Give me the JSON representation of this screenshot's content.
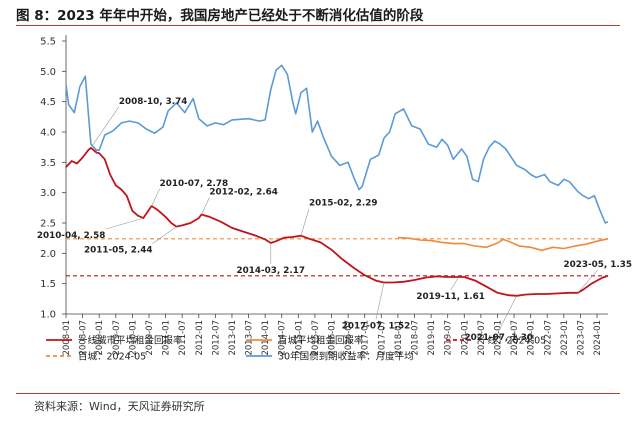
{
  "figure_title": "图 8：2023 年年中开始，我国房地产已经处于不断消化估值的阶段",
  "source_note": "资料来源：Wind，天风证券研究所",
  "colors": {
    "tier1_rent_yield": "#c0141c",
    "tier100_rent_yield": "#f08a3a",
    "cgb_30y": "#5b9bd5",
    "title_rule": "#b04040"
  },
  "chart_data": {
    "type": "line",
    "title": "",
    "xlabel": "",
    "ylabel": "",
    "ylim": [
      1.0,
      5.5
    ],
    "yticks": [
      1.0,
      1.5,
      2.0,
      2.5,
      3.0,
      3.5,
      4.0,
      4.5,
      5.0,
      5.5
    ],
    "ytick_labels": [
      "1.0",
      "1.5",
      "2.0",
      "2.5",
      "3.0",
      "3.5",
      "4.0",
      "4.5",
      "5.0",
      "5.5"
    ],
    "xlim": [
      2008.0,
      2024.33
    ],
    "xtick_labels": [
      "2008-01",
      "2008-07",
      "2009-01",
      "2009-07",
      "2010-01",
      "2010-07",
      "2011-01",
      "2011-07",
      "2012-01",
      "2012-07",
      "2013-01",
      "2013-07",
      "2014-01",
      "2014-07",
      "2015-01",
      "2015-07",
      "2016-01",
      "2016-07",
      "2017-01",
      "2017-07",
      "2018-01",
      "2018-07",
      "2019-01",
      "2019-07",
      "2020-01",
      "2020-07",
      "2021-01",
      "2021-07",
      "2022-01",
      "2022-07",
      "2023-01",
      "2023-07",
      "2024-01"
    ],
    "grid": false,
    "legend_position": "bottom",
    "series": [
      {
        "name": "一线城市平均租金回报率",
        "color_key": "tier1_rent_yield",
        "style": "solid",
        "points": [
          [
            2008.0,
            3.42
          ],
          [
            2008.17,
            3.52
          ],
          [
            2008.33,
            3.48
          ],
          [
            2008.5,
            3.58
          ],
          [
            2008.67,
            3.7
          ],
          [
            2008.75,
            3.74
          ],
          [
            2008.92,
            3.66
          ],
          [
            2009.0,
            3.65
          ],
          [
            2009.17,
            3.55
          ],
          [
            2009.33,
            3.3
          ],
          [
            2009.5,
            3.12
          ],
          [
            2009.67,
            3.05
          ],
          [
            2009.83,
            2.95
          ],
          [
            2010.0,
            2.7
          ],
          [
            2010.17,
            2.62
          ],
          [
            2010.33,
            2.58
          ],
          [
            2010.5,
            2.72
          ],
          [
            2010.58,
            2.78
          ],
          [
            2010.75,
            2.72
          ],
          [
            2011.0,
            2.6
          ],
          [
            2011.17,
            2.5
          ],
          [
            2011.33,
            2.44
          ],
          [
            2011.5,
            2.46
          ],
          [
            2011.75,
            2.5
          ],
          [
            2012.0,
            2.58
          ],
          [
            2012.08,
            2.64
          ],
          [
            2012.33,
            2.6
          ],
          [
            2012.67,
            2.52
          ],
          [
            2013.0,
            2.42
          ],
          [
            2013.33,
            2.36
          ],
          [
            2013.67,
            2.3
          ],
          [
            2014.0,
            2.23
          ],
          [
            2014.17,
            2.17
          ],
          [
            2014.33,
            2.2
          ],
          [
            2014.58,
            2.26
          ],
          [
            2014.83,
            2.27
          ],
          [
            2015.08,
            2.29
          ],
          [
            2015.33,
            2.24
          ],
          [
            2015.67,
            2.18
          ],
          [
            2016.0,
            2.06
          ],
          [
            2016.33,
            1.9
          ],
          [
            2016.67,
            1.76
          ],
          [
            2017.0,
            1.64
          ],
          [
            2017.33,
            1.55
          ],
          [
            2017.58,
            1.52
          ],
          [
            2017.83,
            1.52
          ],
          [
            2018.17,
            1.53
          ],
          [
            2018.5,
            1.56
          ],
          [
            2018.83,
            1.6
          ],
          [
            2019.17,
            1.62
          ],
          [
            2019.5,
            1.61
          ],
          [
            2019.83,
            1.61
          ],
          [
            2020.0,
            1.61
          ],
          [
            2020.33,
            1.55
          ],
          [
            2020.67,
            1.45
          ],
          [
            2021.0,
            1.35
          ],
          [
            2021.33,
            1.31
          ],
          [
            2021.58,
            1.3
          ],
          [
            2021.83,
            1.32
          ],
          [
            2022.17,
            1.33
          ],
          [
            2022.5,
            1.33
          ],
          [
            2022.83,
            1.34
          ],
          [
            2023.17,
            1.35
          ],
          [
            2023.42,
            1.35
          ],
          [
            2023.58,
            1.4
          ],
          [
            2023.83,
            1.5
          ],
          [
            2024.0,
            1.55
          ],
          [
            2024.17,
            1.6
          ],
          [
            2024.33,
            1.63
          ]
        ]
      },
      {
        "name": "百城平均租金回报率",
        "color_key": "tier100_rent_yield",
        "style": "solid",
        "points": [
          [
            2018.0,
            2.26
          ],
          [
            2018.33,
            2.25
          ],
          [
            2018.67,
            2.22
          ],
          [
            2019.0,
            2.21
          ],
          [
            2019.33,
            2.18
          ],
          [
            2019.67,
            2.16
          ],
          [
            2020.0,
            2.16
          ],
          [
            2020.33,
            2.12
          ],
          [
            2020.67,
            2.1
          ],
          [
            2021.0,
            2.17
          ],
          [
            2021.17,
            2.23
          ],
          [
            2021.33,
            2.2
          ],
          [
            2021.67,
            2.12
          ],
          [
            2022.0,
            2.1
          ],
          [
            2022.33,
            2.05
          ],
          [
            2022.67,
            2.1
          ],
          [
            2023.0,
            2.08
          ],
          [
            2023.33,
            2.12
          ],
          [
            2023.67,
            2.15
          ],
          [
            2024.0,
            2.2
          ],
          [
            2024.33,
            2.24
          ]
        ]
      },
      {
        "name": "30年国债到期收益率：月度平均",
        "color_key": "cgb_30y",
        "style": "solid",
        "points": [
          [
            2008.0,
            4.78
          ],
          [
            2008.08,
            4.45
          ],
          [
            2008.25,
            4.32
          ],
          [
            2008.42,
            4.75
          ],
          [
            2008.58,
            4.92
          ],
          [
            2008.75,
            3.8
          ],
          [
            2008.92,
            3.7
          ],
          [
            2009.0,
            3.7
          ],
          [
            2009.17,
            3.95
          ],
          [
            2009.42,
            4.02
          ],
          [
            2009.67,
            4.15
          ],
          [
            2009.92,
            4.18
          ],
          [
            2010.17,
            4.15
          ],
          [
            2010.42,
            4.05
          ],
          [
            2010.67,
            3.98
          ],
          [
            2010.92,
            4.08
          ],
          [
            2011.08,
            4.35
          ],
          [
            2011.33,
            4.48
          ],
          [
            2011.58,
            4.32
          ],
          [
            2011.83,
            4.55
          ],
          [
            2012.0,
            4.22
          ],
          [
            2012.25,
            4.1
          ],
          [
            2012.5,
            4.15
          ],
          [
            2012.75,
            4.12
          ],
          [
            2013.0,
            4.2
          ],
          [
            2013.5,
            4.22
          ],
          [
            2013.83,
            4.18
          ],
          [
            2014.0,
            4.2
          ],
          [
            2014.17,
            4.7
          ],
          [
            2014.33,
            5.02
          ],
          [
            2014.5,
            5.1
          ],
          [
            2014.67,
            4.95
          ],
          [
            2014.83,
            4.5
          ],
          [
            2014.92,
            4.3
          ],
          [
            2015.08,
            4.65
          ],
          [
            2015.25,
            4.72
          ],
          [
            2015.42,
            4.0
          ],
          [
            2015.58,
            4.18
          ],
          [
            2015.75,
            3.92
          ],
          [
            2016.0,
            3.6
          ],
          [
            2016.25,
            3.45
          ],
          [
            2016.5,
            3.5
          ],
          [
            2016.67,
            3.25
          ],
          [
            2016.83,
            3.05
          ],
          [
            2016.92,
            3.1
          ],
          [
            2017.17,
            3.55
          ],
          [
            2017.42,
            3.62
          ],
          [
            2017.58,
            3.9
          ],
          [
            2017.75,
            4.0
          ],
          [
            2017.92,
            4.3
          ],
          [
            2018.17,
            4.38
          ],
          [
            2018.42,
            4.1
          ],
          [
            2018.67,
            4.05
          ],
          [
            2018.92,
            3.8
          ],
          [
            2019.17,
            3.75
          ],
          [
            2019.33,
            3.88
          ],
          [
            2019.5,
            3.78
          ],
          [
            2019.67,
            3.55
          ],
          [
            2019.92,
            3.72
          ],
          [
            2020.08,
            3.6
          ],
          [
            2020.25,
            3.22
          ],
          [
            2020.42,
            3.18
          ],
          [
            2020.58,
            3.55
          ],
          [
            2020.75,
            3.75
          ],
          [
            2020.92,
            3.85
          ],
          [
            2021.08,
            3.8
          ],
          [
            2021.25,
            3.72
          ],
          [
            2021.42,
            3.58
          ],
          [
            2021.58,
            3.45
          ],
          [
            2021.83,
            3.38
          ],
          [
            2022.0,
            3.3
          ],
          [
            2022.17,
            3.25
          ],
          [
            2022.42,
            3.3
          ],
          [
            2022.58,
            3.18
          ],
          [
            2022.83,
            3.12
          ],
          [
            2023.0,
            3.22
          ],
          [
            2023.17,
            3.18
          ],
          [
            2023.42,
            3.02
          ],
          [
            2023.58,
            2.95
          ],
          [
            2023.75,
            2.9
          ],
          [
            2023.92,
            2.95
          ],
          [
            2024.08,
            2.72
          ],
          [
            2024.25,
            2.5
          ],
          [
            2024.33,
            2.52
          ]
        ]
      }
    ],
    "reference_lines": [
      {
        "name": "一线：2024-05",
        "value": 1.63,
        "color_key": "tier1_rent_yield",
        "style": "dashed"
      },
      {
        "name": "百城：2024-05",
        "value": 2.24,
        "color_key": "tier100_rent_yield",
        "style": "dashed"
      }
    ],
    "annotations": [
      {
        "text": "2008-10, 3.74",
        "x": 2008.75,
        "y": 3.74
      },
      {
        "text": "2010-07, 2.78",
        "x": 2010.58,
        "y": 2.78
      },
      {
        "text": "2010-04, 2.58",
        "x": 2010.33,
        "y": 2.58
      },
      {
        "text": "2012-02, 2.64",
        "x": 2012.08,
        "y": 2.64
      },
      {
        "text": "2011-05, 2.44",
        "x": 2011.33,
        "y": 2.44
      },
      {
        "text": "2015-02, 2.29",
        "x": 2015.08,
        "y": 2.29
      },
      {
        "text": "2014-03, 2.17",
        "x": 2014.17,
        "y": 2.17
      },
      {
        "text": "2017-07, 1.52",
        "x": 2017.58,
        "y": 1.52
      },
      {
        "text": "2019-11, 1.61",
        "x": 2019.83,
        "y": 1.61
      },
      {
        "text": "2021-07, 1.30",
        "x": 2021.58,
        "y": 1.3
      },
      {
        "text": "2023-05, 1.35",
        "x": 2023.42,
        "y": 1.35
      }
    ]
  }
}
